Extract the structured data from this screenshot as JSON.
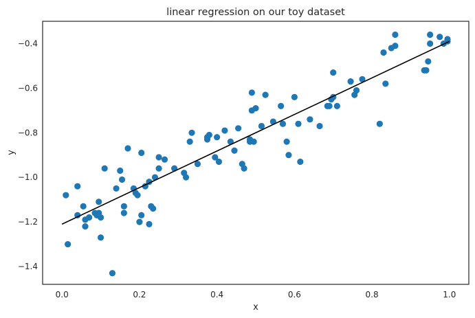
{
  "chart_data": {
    "type": "scatter",
    "title": "linear regression on our toy dataset",
    "xlabel": "x",
    "ylabel": "y",
    "xlim": [
      -0.05,
      1.05
    ],
    "ylim": [
      -1.48,
      -0.3
    ],
    "xticks": [
      0.0,
      0.2,
      0.4,
      0.6,
      0.8,
      1.0
    ],
    "xtick_labels": [
      "0.0",
      "0.2",
      "0.4",
      "0.6",
      "0.8",
      "1.0"
    ],
    "yticks": [
      -1.4,
      -1.2,
      -1.0,
      -0.8,
      -0.6,
      -0.4
    ],
    "ytick_labels": [
      "−1.4",
      "−1.2",
      "−1.0",
      "−0.8",
      "−0.6",
      "−0.4"
    ],
    "grid": false,
    "colors": {
      "points": "#1f77b4",
      "line": "#000000",
      "frame": "#262626"
    },
    "series": [
      {
        "type": "scatter",
        "points": [
          [
            0.01,
            -1.08
          ],
          [
            0.015,
            -1.3
          ],
          [
            0.04,
            -1.04
          ],
          [
            0.04,
            -1.17
          ],
          [
            0.055,
            -1.13
          ],
          [
            0.06,
            -1.19
          ],
          [
            0.06,
            -1.22
          ],
          [
            0.07,
            -1.18
          ],
          [
            0.085,
            -1.16
          ],
          [
            0.09,
            -1.17
          ],
          [
            0.095,
            -1.11
          ],
          [
            0.095,
            -1.16
          ],
          [
            0.1,
            -1.18
          ],
          [
            0.1,
            -1.27
          ],
          [
            0.11,
            -0.96
          ],
          [
            0.13,
            -1.43
          ],
          [
            0.14,
            -1.05
          ],
          [
            0.15,
            -0.97
          ],
          [
            0.155,
            -1.01
          ],
          [
            0.16,
            -1.13
          ],
          [
            0.16,
            -1.16
          ],
          [
            0.17,
            -0.87
          ],
          [
            0.185,
            -1.05
          ],
          [
            0.19,
            -1.07
          ],
          [
            0.195,
            -1.08
          ],
          [
            0.2,
            -1.2
          ],
          [
            0.205,
            -1.17
          ],
          [
            0.205,
            -0.89
          ],
          [
            0.215,
            -1.04
          ],
          [
            0.225,
            -1.02
          ],
          [
            0.225,
            -1.21
          ],
          [
            0.23,
            -1.13
          ],
          [
            0.235,
            -1.14
          ],
          [
            0.24,
            -1.0
          ],
          [
            0.25,
            -0.96
          ],
          [
            0.25,
            -0.91
          ],
          [
            0.265,
            -0.92
          ],
          [
            0.29,
            -0.96
          ],
          [
            0.315,
            -0.98
          ],
          [
            0.32,
            -1.0
          ],
          [
            0.33,
            -0.84
          ],
          [
            0.335,
            -0.8
          ],
          [
            0.35,
            -0.94
          ],
          [
            0.375,
            -0.82
          ],
          [
            0.375,
            -0.83
          ],
          [
            0.38,
            -0.81
          ],
          [
            0.395,
            -0.91
          ],
          [
            0.4,
            -0.82
          ],
          [
            0.405,
            -0.93
          ],
          [
            0.42,
            -0.79
          ],
          [
            0.435,
            -0.84
          ],
          [
            0.445,
            -0.88
          ],
          [
            0.455,
            -0.78
          ],
          [
            0.465,
            -0.94
          ],
          [
            0.47,
            -0.96
          ],
          [
            0.485,
            -0.83
          ],
          [
            0.485,
            -0.84
          ],
          [
            0.49,
            -0.7
          ],
          [
            0.49,
            -0.62
          ],
          [
            0.495,
            -0.84
          ],
          [
            0.5,
            -0.69
          ],
          [
            0.515,
            -0.77
          ],
          [
            0.525,
            -0.63
          ],
          [
            0.545,
            -0.75
          ],
          [
            0.565,
            -0.68
          ],
          [
            0.57,
            -0.76
          ],
          [
            0.58,
            -0.84
          ],
          [
            0.585,
            -0.9
          ],
          [
            0.6,
            -0.64
          ],
          [
            0.61,
            -0.76
          ],
          [
            0.615,
            -0.93
          ],
          [
            0.64,
            -0.74
          ],
          [
            0.665,
            -0.77
          ],
          [
            0.685,
            -0.68
          ],
          [
            0.69,
            -0.68
          ],
          [
            0.695,
            -0.65
          ],
          [
            0.7,
            -0.53
          ],
          [
            0.7,
            -0.64
          ],
          [
            0.71,
            -0.68
          ],
          [
            0.745,
            -0.57
          ],
          [
            0.755,
            -0.63
          ],
          [
            0.76,
            -0.61
          ],
          [
            0.775,
            -0.56
          ],
          [
            0.82,
            -0.76
          ],
          [
            0.83,
            -0.44
          ],
          [
            0.835,
            -0.58
          ],
          [
            0.85,
            -0.42
          ],
          [
            0.86,
            -0.41
          ],
          [
            0.86,
            -0.36
          ],
          [
            0.935,
            -0.52
          ],
          [
            0.94,
            -0.52
          ],
          [
            0.945,
            -0.48
          ],
          [
            0.95,
            -0.4
          ],
          [
            0.95,
            -0.36
          ],
          [
            0.975,
            -0.37
          ],
          [
            0.985,
            -0.4
          ],
          [
            0.995,
            -0.39
          ],
          [
            0.995,
            -0.38
          ]
        ]
      },
      {
        "type": "line",
        "x": [
          0.0,
          1.0
        ],
        "y": [
          -1.21,
          -0.39
        ]
      }
    ]
  }
}
